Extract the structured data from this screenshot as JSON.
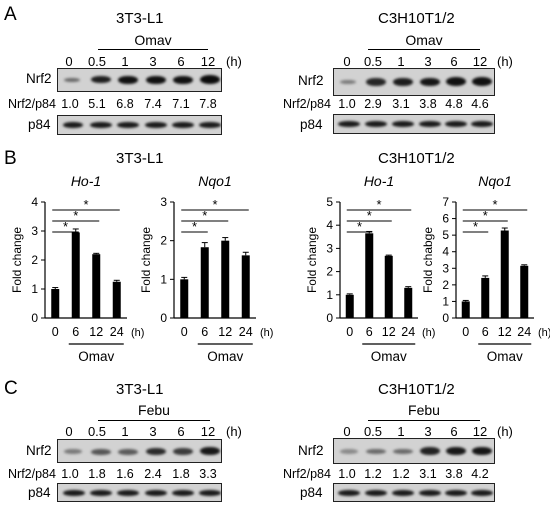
{
  "panelA": {
    "letter": "A",
    "blots": [
      {
        "cell_line": "3T3-L1",
        "treatment": "Omav",
        "time_unit": "(h)",
        "lanes": [
          "0",
          "0.5",
          "1",
          "3",
          "6",
          "12"
        ],
        "row_label_target": "Nrf2",
        "ratio_label": "Nrf2/p84",
        "ratios": [
          "1.0",
          "5.1",
          "6.8",
          "7.4",
          "7.1",
          "7.8"
        ],
        "loading_label": "p84"
      },
      {
        "cell_line": "C3H10T1/2",
        "treatment": "Omav",
        "time_unit": "(h)",
        "lanes": [
          "0",
          "0.5",
          "1",
          "3",
          "6",
          "12"
        ],
        "row_label_target": "Nrf2",
        "ratio_label": "Nrf2/p84",
        "ratios": [
          "1.0",
          "2.9",
          "3.1",
          "3.8",
          "4.8",
          "4.6"
        ],
        "loading_label": "p84"
      }
    ]
  },
  "panelB": {
    "letter": "B",
    "cell_titles": [
      "3T3-L1",
      "C3H10T1/2"
    ],
    "treatment": "Omav",
    "time_unit": "(h)",
    "significance": "*"
  },
  "panelC": {
    "letter": "C",
    "blots": [
      {
        "cell_line": "3T3-L1",
        "treatment": "Febu",
        "time_unit": "(h)",
        "lanes": [
          "0",
          "0.5",
          "1",
          "3",
          "6",
          "12"
        ],
        "row_label_target": "Nrf2",
        "ratio_label": "Nrf2/p84",
        "ratios": [
          "1.0",
          "1.8",
          "1.6",
          "2.4",
          "1.8",
          "3.3"
        ],
        "loading_label": "p84"
      },
      {
        "cell_line": "C3H10T1/2",
        "treatment": "Febu",
        "time_unit": "(h)",
        "lanes": [
          "0",
          "0.5",
          "1",
          "3",
          "6",
          "12"
        ],
        "row_label_target": "Nrf2",
        "ratio_label": "Nrf2/p84",
        "ratios": [
          "1.0",
          "1.2",
          "1.2",
          "3.1",
          "3.8",
          "4.2"
        ],
        "loading_label": "p84"
      }
    ]
  },
  "chart_data": [
    {
      "type": "bar",
      "title": "Ho-1",
      "cell_line": "3T3-L1",
      "categories": [
        "0",
        "6",
        "12",
        "24"
      ],
      "values": [
        1.0,
        2.95,
        2.2,
        1.25
      ],
      "errors": [
        0.05,
        0.12,
        0.03,
        0.05
      ],
      "ylabel": "Fold change",
      "xlabel": "Omav",
      "ylim": [
        0,
        4
      ],
      "yticks": [
        0,
        1,
        2,
        3,
        4
      ],
      "significance": [
        [
          "0",
          "6"
        ],
        [
          "0",
          "12"
        ],
        [
          "0",
          "24"
        ]
      ]
    },
    {
      "type": "bar",
      "title": "Nqo1",
      "cell_line": "3T3-L1",
      "categories": [
        "0",
        "6",
        "12",
        "24"
      ],
      "values": [
        1.0,
        1.83,
        2.0,
        1.62
      ],
      "errors": [
        0.05,
        0.12,
        0.08,
        0.08
      ],
      "ylabel": "Fold change",
      "xlabel": "Omav",
      "ylim": [
        0,
        3
      ],
      "yticks": [
        0,
        1,
        2,
        3
      ],
      "significance": [
        [
          "0",
          "6"
        ],
        [
          "0",
          "12"
        ],
        [
          "0",
          "24"
        ]
      ]
    },
    {
      "type": "bar",
      "title": "Ho-1",
      "cell_line": "C3H10T1/2",
      "categories": [
        "0",
        "6",
        "12",
        "24"
      ],
      "values": [
        1.0,
        3.65,
        2.68,
        1.3
      ],
      "errors": [
        0.04,
        0.08,
        0.03,
        0.05
      ],
      "ylabel": "Fold change",
      "xlabel": "Omav",
      "ylim": [
        0,
        5
      ],
      "yticks": [
        0,
        1,
        2,
        3,
        4,
        5
      ],
      "significance": [
        [
          "0",
          "6"
        ],
        [
          "0",
          "12"
        ],
        [
          "0",
          "24"
        ]
      ]
    },
    {
      "type": "bar",
      "title": "Nqo1",
      "cell_line": "C3H10T1/2",
      "categories": [
        "0",
        "6",
        "12",
        "24"
      ],
      "values": [
        1.0,
        2.42,
        5.28,
        3.15
      ],
      "errors": [
        0.06,
        0.12,
        0.15,
        0.06
      ],
      "ylabel": "Fold chabge",
      "xlabel": "Omav",
      "ylim": [
        0,
        7
      ],
      "yticks": [
        0,
        1,
        2,
        3,
        4,
        5,
        6,
        7
      ],
      "significance": [
        [
          "0",
          "6"
        ],
        [
          "0",
          "12"
        ],
        [
          "0",
          "24"
        ]
      ]
    }
  ]
}
